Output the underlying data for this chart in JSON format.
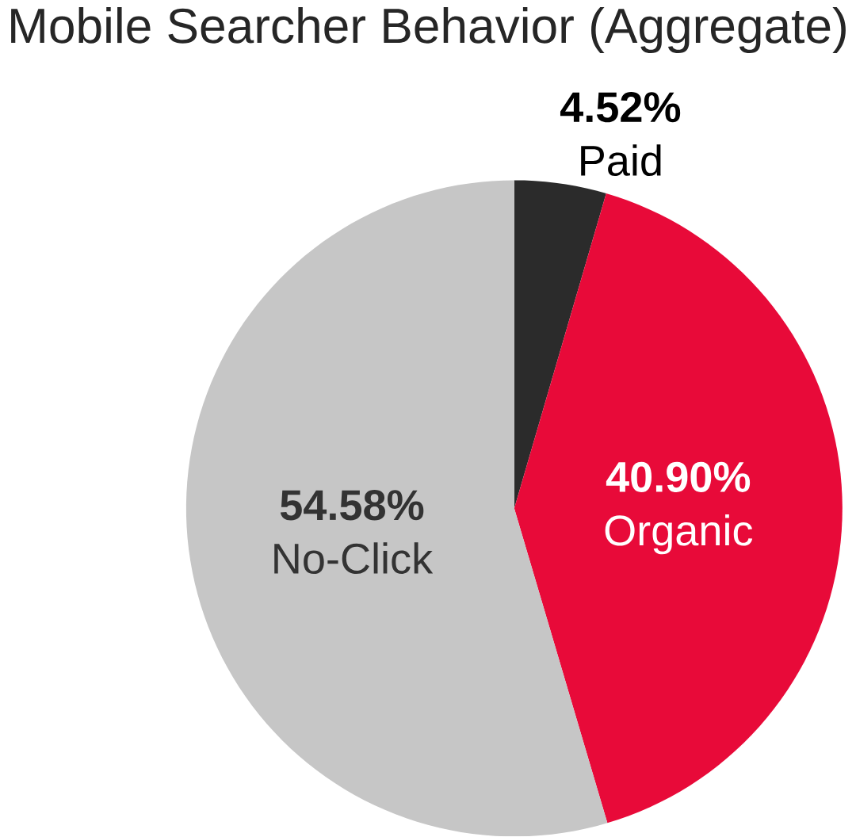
{
  "chart_data": {
    "type": "pie",
    "title": "Mobile Searcher Behavior (Aggregate)",
    "categories": [
      "Paid",
      "Organic",
      "No-Click"
    ],
    "values": [
      4.52,
      40.9,
      54.58
    ],
    "colors": [
      "#2b2b2b",
      "#e80a39",
      "#c6c6c6"
    ],
    "value_labels": [
      "4.52%",
      "40.90%",
      "54.58%"
    ]
  }
}
